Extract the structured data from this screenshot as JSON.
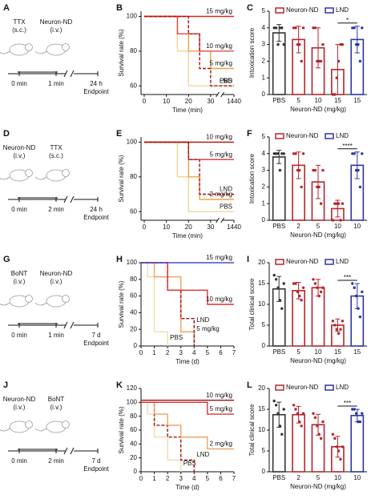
{
  "schematics": [
    {
      "panel": "A",
      "drug1": [
        "TTX",
        "(s.c.)"
      ],
      "drug2": [
        "Neuron-ND",
        "(i.v.)"
      ],
      "t1": "0 min",
      "t2": "1 min",
      "end": [
        "24 h",
        "Endpoint"
      ]
    },
    {
      "panel": "D",
      "drug1": [
        "Neuron-ND",
        "(i.v.)"
      ],
      "drug2": [
        "TTX",
        "(s.c.)"
      ],
      "t1": "0 min",
      "t2": "2 min",
      "end": [
        "24 h",
        "Endpoint"
      ]
    },
    {
      "panel": "G",
      "drug1": [
        "BoNT",
        "(i.v.)"
      ],
      "drug2": [
        "Neuron-ND",
        "(i.v.)"
      ],
      "t1": "0 min",
      "t2": "1 min",
      "end": [
        "7 d",
        "Endpoint"
      ]
    },
    {
      "panel": "J",
      "drug1": [
        "Neuron-ND",
        "(i.v.)"
      ],
      "drug2": [
        "BoNT",
        "(i.v.)"
      ],
      "t1": "0 min",
      "t2": "2 min",
      "end": [
        "7 d",
        "Endpoint"
      ]
    }
  ],
  "chart_data": [
    {
      "type": "survival",
      "panel": "B",
      "xlabel": "Time (min)",
      "ylabel": "Survival rate (%)",
      "xlim": [
        0,
        1440
      ],
      "xticks": [
        0,
        10,
        20,
        30,
        1440
      ],
      "axis_break": true,
      "ylim": [
        55,
        103
      ],
      "yticks": [
        60,
        80,
        100
      ],
      "series": [
        {
          "name": "PBS",
          "color": "#f0d890",
          "dashed": false,
          "x": [
            0,
            15,
            15,
            20,
            20,
            1440
          ],
          "y": [
            100,
            100,
            80,
            80,
            60,
            60
          ]
        },
        {
          "name": "5 mg/kg",
          "color": "#f0a040",
          "dashed": false,
          "x": [
            0,
            15,
            15,
            20,
            20,
            30,
            30,
            1440
          ],
          "y": [
            100,
            100,
            90,
            90,
            80,
            80,
            70,
            70
          ]
        },
        {
          "name": "10 mg/kg",
          "color": "#d85050",
          "dashed": false,
          "x": [
            0,
            15,
            15,
            25,
            25,
            1440
          ],
          "y": [
            100,
            100,
            90,
            90,
            80,
            80
          ]
        },
        {
          "name": "15 mg/kg",
          "color": "#e02020",
          "dashed": false,
          "x": [
            0,
            1440
          ],
          "y": [
            100,
            100
          ]
        },
        {
          "name": "LND",
          "color": "#a01010",
          "dashed": true,
          "x": [
            0,
            20,
            20,
            25,
            25,
            30,
            30,
            1440
          ],
          "y": [
            100,
            100,
            90,
            90,
            70,
            70,
            60,
            60
          ]
        }
      ]
    },
    {
      "type": "bar",
      "panel": "C",
      "xlabel": "Neuron-ND (mg/kg)",
      "ylabel": "Intoxication score",
      "ylim": [
        0,
        5
      ],
      "yticks": [
        0,
        1,
        2,
        3,
        4,
        5
      ],
      "categories": [
        "PBS",
        "5",
        "10",
        "15",
        "15"
      ],
      "values": [
        3.7,
        3.3,
        2.8,
        1.5,
        3.3
      ],
      "errors": [
        0.5,
        0.8,
        1.2,
        1.5,
        0.8
      ],
      "colors": [
        "#333333",
        "#b8242a",
        "#b8242a",
        "#b8242a",
        "#2b35a8"
      ],
      "points": [
        [
          4,
          4,
          3,
          4,
          4,
          3
        ],
        [
          4,
          4,
          3,
          3,
          2,
          4
        ],
        [
          4,
          4,
          2,
          2,
          2,
          3
        ],
        [
          0,
          0,
          1,
          2,
          3,
          3
        ],
        [
          4,
          4,
          3,
          3,
          2,
          4
        ]
      ],
      "legend": [
        {
          "name": "Neuron-ND",
          "color": "#b8242a"
        },
        {
          "name": "LND",
          "color": "#2b35a8"
        }
      ],
      "significance": "*"
    },
    {
      "type": "survival",
      "panel": "E",
      "xlabel": "Time (min)",
      "ylabel": "Survival rate (%)",
      "xlim": [
        0,
        1440
      ],
      "xticks": [
        0,
        10,
        20,
        30,
        1440
      ],
      "axis_break": true,
      "ylim": [
        55,
        103
      ],
      "yticks": [
        60,
        80,
        100
      ],
      "series": [
        {
          "name": "PBS",
          "color": "#f0d890",
          "dashed": false,
          "x": [
            0,
            15,
            15,
            20,
            20,
            1440
          ],
          "y": [
            100,
            100,
            80,
            80,
            60,
            60
          ]
        },
        {
          "name": "2 mg/kg",
          "color": "#f0a040",
          "dashed": false,
          "x": [
            0,
            20,
            20,
            25,
            25,
            1440
          ],
          "y": [
            100,
            100,
            80,
            80,
            67,
            67
          ]
        },
        {
          "name": "5 mg/kg",
          "color": "#e03030",
          "dashed": false,
          "x": [
            0,
            20,
            20,
            1440
          ],
          "y": [
            100,
            100,
            90,
            90
          ]
        },
        {
          "name": "10 mg/kg",
          "color": "#b01818",
          "dashed": false,
          "x": [
            0,
            1440
          ],
          "y": [
            100,
            100
          ]
        },
        {
          "name": "LND",
          "color": "#a01010",
          "dashed": true,
          "x": [
            0,
            20,
            20,
            25,
            25,
            1440
          ],
          "y": [
            100,
            100,
            90,
            90,
            70,
            70
          ]
        }
      ]
    },
    {
      "type": "bar",
      "panel": "F",
      "xlabel": "Neuron-ND (mg/kg)",
      "ylabel": "Intoxication score",
      "ylim": [
        0,
        5
      ],
      "yticks": [
        0,
        1,
        2,
        3,
        4,
        5
      ],
      "categories": [
        "PBS",
        "2",
        "5",
        "10",
        "10"
      ],
      "values": [
        3.8,
        3.3,
        2.3,
        0.7,
        3.3
      ],
      "errors": [
        0.4,
        0.8,
        1.0,
        0.5,
        0.8
      ],
      "colors": [
        "#333333",
        "#b8242a",
        "#b8242a",
        "#b8242a",
        "#2b35a8"
      ],
      "points": [
        [
          4,
          4,
          4,
          3,
          4,
          4
        ],
        [
          4,
          4,
          3,
          3,
          2,
          4
        ],
        [
          3,
          3,
          2,
          2,
          1,
          3
        ],
        [
          0,
          1,
          1,
          1,
          0,
          1
        ],
        [
          4,
          4,
          3,
          3,
          2,
          4
        ]
      ],
      "legend": [
        {
          "name": "Neuron-ND",
          "color": "#b8242a"
        },
        {
          "name": "LND",
          "color": "#2b35a8"
        }
      ],
      "significance": "****"
    },
    {
      "type": "survival",
      "panel": "H",
      "xlabel": "Time (d)",
      "ylabel": "Survival rate (%)",
      "xlim": [
        0,
        7
      ],
      "xticks": [
        0,
        1,
        2,
        3,
        4,
        5,
        6,
        7
      ],
      "axis_break": false,
      "ylim": [
        0,
        100
      ],
      "yticks": [
        0,
        20,
        40,
        60,
        80,
        100
      ],
      "series": [
        {
          "name": "PBS",
          "color": "#f0dcb0",
          "dashed": false,
          "x": [
            0,
            0.5,
            0.5,
            1,
            1,
            2,
            2
          ],
          "y": [
            100,
            100,
            83,
            83,
            17,
            17,
            0
          ]
        },
        {
          "name": "5 mg/kg",
          "color": "#f0a060",
          "dashed": false,
          "x": [
            0,
            1,
            1,
            3,
            3,
            4,
            4
          ],
          "y": [
            100,
            100,
            83,
            83,
            17,
            17,
            0
          ]
        },
        {
          "name": "LND",
          "color": "#a01010",
          "dashed": true,
          "x": [
            0,
            2,
            2,
            3,
            3,
            4,
            4
          ],
          "y": [
            100,
            100,
            67,
            67,
            33,
            33,
            0
          ]
        },
        {
          "name": "10 mg/kg",
          "color": "#e03030",
          "dashed": false,
          "x": [
            0,
            2,
            2,
            5,
            5,
            7
          ],
          "y": [
            100,
            100,
            67,
            67,
            50,
            50
          ]
        },
        {
          "name": "15 mg/kg",
          "color": "#4b4bc0",
          "dashed": false,
          "x": [
            0,
            7
          ],
          "y": [
            100,
            100
          ]
        }
      ]
    },
    {
      "type": "bar",
      "panel": "I",
      "xlabel": "Neuron-ND (mg/kg)",
      "ylabel": "Total clinical score",
      "ylim": [
        0,
        20
      ],
      "yticks": [
        0,
        5,
        10,
        15,
        20
      ],
      "categories": [
        "PBS",
        "5",
        "10",
        "15",
        "15"
      ],
      "values": [
        13.7,
        13.3,
        14,
        5,
        12
      ],
      "errors": [
        3,
        2,
        2,
        1.5,
        3
      ],
      "colors": [
        "#333333",
        "#b8242a",
        "#b8242a",
        "#b8242a",
        "#2b35a8"
      ],
      "points": [
        [
          17,
          16,
          14,
          11,
          9,
          15
        ],
        [
          15,
          15,
          13,
          12,
          11,
          14
        ],
        [
          16,
          15,
          14,
          12,
          13,
          14
        ],
        [
          6,
          5,
          4,
          3,
          4,
          6
        ],
        [
          15,
          14,
          12,
          9,
          7,
          13
        ]
      ],
      "legend": [
        {
          "name": "Neuron-ND",
          "color": "#b8242a"
        },
        {
          "name": "LND",
          "color": "#2b35a8"
        }
      ],
      "significance": "***"
    },
    {
      "type": "survival",
      "panel": "K",
      "xlabel": "Time (d)",
      "ylabel": "Survival rate (%)",
      "xlim": [
        0,
        7
      ],
      "xticks": [
        0,
        1,
        2,
        3,
        4,
        5,
        6,
        7
      ],
      "axis_break": false,
      "ylim": [
        0,
        120
      ],
      "yticks": [
        0,
        20,
        40,
        60,
        80,
        100,
        120
      ],
      "series": [
        {
          "name": "PBS",
          "color": "#f0dcb0",
          "dashed": false,
          "x": [
            0,
            0.5,
            0.5,
            1,
            1,
            2,
            2,
            3,
            3
          ],
          "y": [
            100,
            100,
            83,
            83,
            50,
            50,
            17,
            17,
            0
          ]
        },
        {
          "name": "LND",
          "color": "#a01010",
          "dashed": true,
          "x": [
            0,
            1,
            1,
            2,
            2,
            3,
            3,
            4,
            4
          ],
          "y": [
            100,
            100,
            67,
            67,
            50,
            50,
            17,
            17,
            0
          ]
        },
        {
          "name": "2 mg/kg",
          "color": "#f0a060",
          "dashed": false,
          "x": [
            0,
            1,
            1,
            2,
            2,
            3,
            3,
            5,
            5,
            7
          ],
          "y": [
            100,
            100,
            83,
            83,
            67,
            67,
            50,
            50,
            33,
            33
          ]
        },
        {
          "name": "5 mg/kg",
          "color": "#e03030",
          "dashed": false,
          "x": [
            0,
            5,
            5,
            7
          ],
          "y": [
            100,
            100,
            83,
            83
          ]
        },
        {
          "name": "10 mg/kg",
          "color": "#a01010",
          "dashed": false,
          "x": [
            0,
            7
          ],
          "y": [
            103,
            103
          ]
        }
      ]
    },
    {
      "type": "bar",
      "panel": "L",
      "xlabel": "Neuron-ND (mg/kg)",
      "ylabel": "Total clinical score",
      "ylim": [
        0,
        20
      ],
      "yticks": [
        0,
        5,
        10,
        15,
        20
      ],
      "categories": [
        "PBS",
        "2",
        "5",
        "10",
        "10"
      ],
      "values": [
        13.7,
        13.7,
        11.3,
        6,
        13.5
      ],
      "errors": [
        3,
        2,
        2.5,
        2.5,
        1.5
      ],
      "colors": [
        "#333333",
        "#b8242a",
        "#b8242a",
        "#b8242a",
        "#2b35a8"
      ],
      "points": [
        [
          17,
          16,
          14,
          11,
          9,
          15
        ],
        [
          16,
          15,
          14,
          12,
          11,
          14
        ],
        [
          14,
          13,
          11,
          9,
          8,
          12
        ],
        [
          9,
          8,
          6,
          5,
          3,
          6
        ],
        [
          15,
          15,
          14,
          12,
          12,
          14
        ]
      ],
      "legend": [
        {
          "name": "Neuron-ND",
          "color": "#b8242a"
        },
        {
          "name": "LND",
          "color": "#2b35a8"
        }
      ],
      "significance": "***"
    }
  ]
}
